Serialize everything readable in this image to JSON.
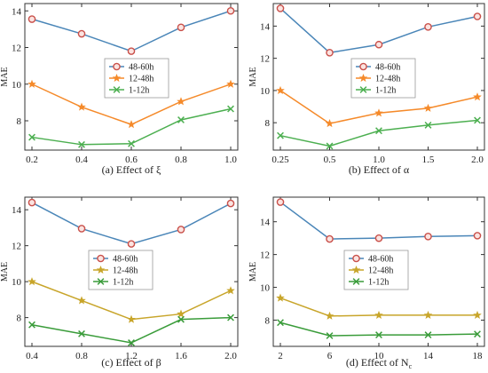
{
  "colors": {
    "series_48_60": "#4a86b8",
    "series_12_48": "#f58a2a",
    "series_1_12": "#4caf50",
    "panel_c_12_48": "#c8a52a",
    "panel_c_1_12": "#3a9c3a",
    "marker_48_60": "#c9504a"
  },
  "chart_data": [
    {
      "type": "line",
      "caption": "(a)  Effect of  ξ",
      "ylabel": "MAE",
      "x": [
        "0.2",
        "0.4",
        "0.6",
        "0.8",
        "1.0"
      ],
      "ylim": [
        6.4,
        14.4
      ],
      "yticks": [
        "8",
        "10",
        "12",
        "14"
      ],
      "legend": "middle",
      "series": [
        {
          "name": "48-60h",
          "marker": "circle",
          "values": [
            13.55,
            12.75,
            11.8,
            13.1,
            14.0
          ]
        },
        {
          "name": "12-48h",
          "marker": "star",
          "values": [
            10.0,
            8.75,
            7.8,
            9.05,
            10.0
          ]
        },
        {
          "name": "1-12h",
          "marker": "x",
          "values": [
            7.1,
            6.7,
            6.75,
            8.05,
            8.65
          ]
        }
      ]
    },
    {
      "type": "line",
      "caption": "(b)  Effect of  α",
      "ylabel": "MAE",
      "x": [
        "0.25",
        "0.5",
        "1.0",
        "1.5",
        "2.0"
      ],
      "ylim": [
        6.3,
        15.4
      ],
      "yticks": [
        "8",
        "10",
        "12",
        "14"
      ],
      "legend": "middle-left",
      "series": [
        {
          "name": "48-60h",
          "marker": "circle",
          "values": [
            15.1,
            12.35,
            12.85,
            13.95,
            14.6
          ]
        },
        {
          "name": "12-48h",
          "marker": "star",
          "values": [
            10.0,
            7.95,
            8.6,
            8.9,
            9.6
          ]
        },
        {
          "name": "1-12h",
          "marker": "x",
          "values": [
            7.2,
            6.55,
            7.5,
            7.85,
            8.15
          ]
        }
      ]
    },
    {
      "type": "line",
      "caption": "(c)  Effect of  β",
      "ylabel": "MAE",
      "x": [
        "0.4",
        "0.8",
        "1.2",
        "1.6",
        "2.0"
      ],
      "ylim": [
        6.4,
        14.7
      ],
      "yticks": [
        "8",
        "10",
        "12",
        "14"
      ],
      "legend": "middle",
      "series": [
        {
          "name": "48-60h",
          "marker": "circle",
          "values": [
            14.4,
            12.95,
            12.1,
            12.9,
            14.35
          ]
        },
        {
          "name": "12-48h",
          "marker": "star",
          "values": [
            10.0,
            8.95,
            7.9,
            8.2,
            9.5
          ]
        },
        {
          "name": "1-12h",
          "marker": "x",
          "values": [
            7.6,
            7.1,
            6.6,
            7.9,
            8.0
          ]
        }
      ]
    },
    {
      "type": "line",
      "caption": "(d)  Effect of  N",
      "caption_subscript": "c",
      "ylabel": "MAE",
      "x": [
        "2",
        "6",
        "10",
        "14",
        "18"
      ],
      "ylim": [
        6.4,
        15.5
      ],
      "yticks": [
        "8",
        "10",
        "12",
        "14"
      ],
      "legend": "middle-left",
      "series": [
        {
          "name": "48-60h",
          "marker": "circle",
          "values": [
            15.2,
            12.95,
            13.0,
            13.1,
            13.15
          ]
        },
        {
          "name": "12-48h",
          "marker": "star",
          "values": [
            9.35,
            8.25,
            8.3,
            8.3,
            8.3
          ]
        },
        {
          "name": "1-12h",
          "marker": "x",
          "values": [
            7.85,
            7.05,
            7.1,
            7.1,
            7.15
          ]
        }
      ]
    }
  ]
}
